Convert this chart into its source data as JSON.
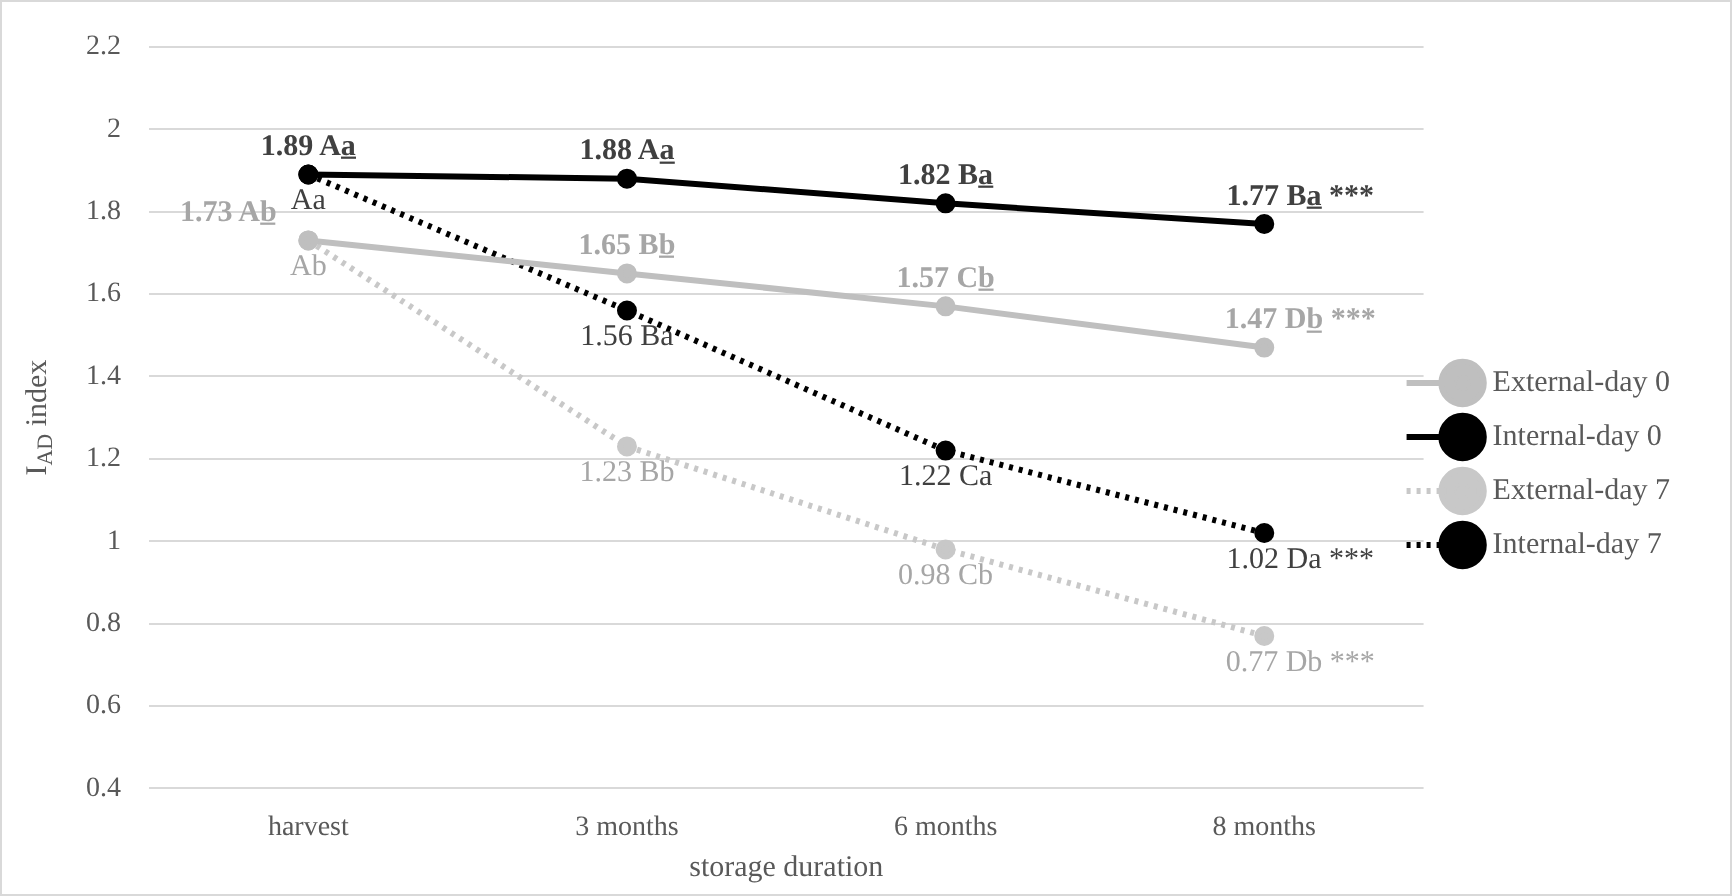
{
  "chart_data": {
    "type": "line",
    "xlabel": "storage duration",
    "ylabel": "I$_{AD}$ index",
    "categories": [
      "harvest",
      "3 months",
      "6 months",
      "8 months"
    ],
    "ylim": [
      0.4,
      2.2
    ],
    "yticks": [
      0.4,
      0.6,
      0.8,
      1,
      1.2,
      1.4,
      1.6,
      1.8,
      2,
      2.2
    ],
    "grid": "y",
    "legend": "right",
    "marker": "circle",
    "series": [
      {
        "name": "External-day 0",
        "color": "#bfbfbf",
        "line_style": "solid",
        "values": [
          1.73,
          1.65,
          1.57,
          1.47
        ],
        "value_labels": [
          "1.73 Ab̲",
          "1.65 Bb̲",
          "1.57 Cb̲",
          "1.47 Db̲ ***"
        ]
      },
      {
        "name": "Internal-day 0",
        "color": "#000000",
        "line_style": "solid",
        "values": [
          1.89,
          1.88,
          1.82,
          1.77
        ],
        "value_labels": [
          "1.89 Aa̲",
          "1.88 Aa̲",
          "1.82 Ba̲",
          "1.77 Ba̲ ***"
        ]
      },
      {
        "name": "External-day 7",
        "color": "#c8c8c8",
        "line_style": "dotted",
        "values": [
          1.73,
          1.23,
          0.98,
          0.77
        ],
        "value_labels": [
          "Ab",
          "1.23 Bb",
          "0.98 Cb",
          "0.77 Db ***"
        ]
      },
      {
        "name": "Internal-day 7",
        "color": "#000000",
        "line_style": "dotted",
        "values": [
          1.89,
          1.56,
          1.22,
          1.02
        ],
        "value_labels": [
          "Aa",
          "1.56 Ba",
          "1.22 Ca",
          "1.02 Da ***"
        ]
      }
    ]
  }
}
